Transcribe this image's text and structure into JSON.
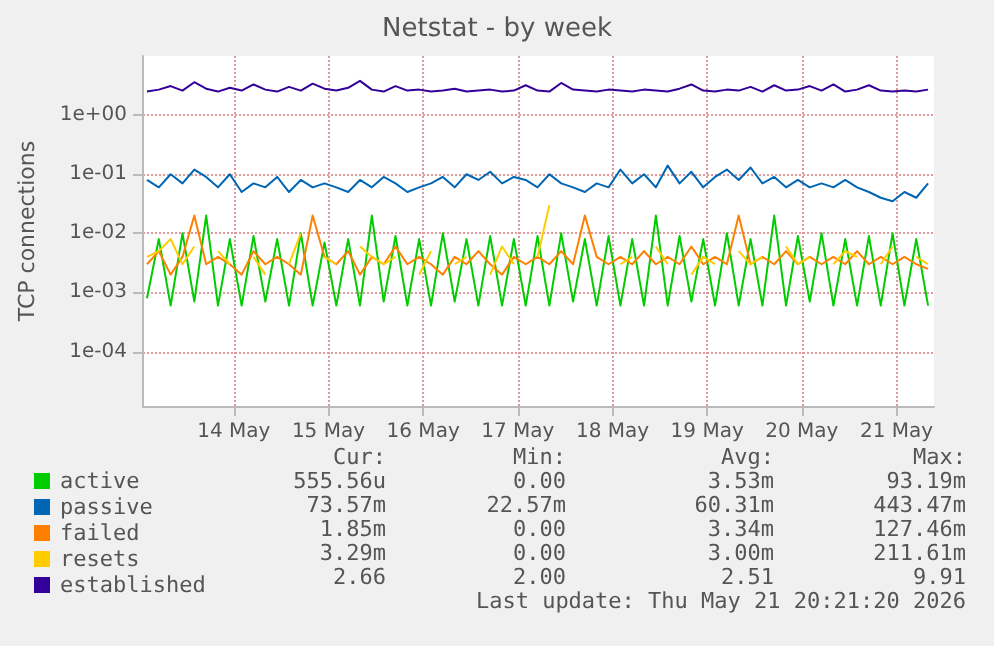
{
  "chart_data": {
    "type": "line",
    "title": "Netstat - by week",
    "ylabel": "TCP connections",
    "log": "y",
    "grid": true,
    "legend": "bottom left",
    "marker": "none",
    "line_style": "solid",
    "xlim": [
      "2026-05-13T01:00",
      "2026-05-21T09:30"
    ],
    "xticks": [
      {
        "value": "2026-05-14",
        "label": "14 May"
      },
      {
        "value": "2026-05-15",
        "label": "15 May"
      },
      {
        "value": "2026-05-16",
        "label": "16 May"
      },
      {
        "value": "2026-05-17",
        "label": "17 May"
      },
      {
        "value": "2026-05-18",
        "label": "18 May"
      },
      {
        "value": "2026-05-19",
        "label": "19 May"
      },
      {
        "value": "2026-05-20",
        "label": "20 May"
      },
      {
        "value": "2026-05-21",
        "label": "21 May"
      }
    ],
    "ylim": [
      1.2e-05,
      10
    ],
    "yticks": [
      {
        "value": 0.0001,
        "label": "1e-04"
      },
      {
        "value": 0.001,
        "label": "1e-03"
      },
      {
        "value": 0.01,
        "label": "1e-02"
      },
      {
        "value": 0.1,
        "label": "1e-01"
      },
      {
        "value": 1,
        "label": "1e+00"
      }
    ],
    "x": [
      "2026-05-13T02:00",
      "2026-05-13T05:00",
      "2026-05-13T08:00",
      "2026-05-13T11:00",
      "2026-05-13T14:00",
      "2026-05-13T17:00",
      "2026-05-13T20:00",
      "2026-05-13T23:00",
      "2026-05-14T02:00",
      "2026-05-14T05:00",
      "2026-05-14T08:00",
      "2026-05-14T11:00",
      "2026-05-14T14:00",
      "2026-05-14T17:00",
      "2026-05-14T20:00",
      "2026-05-14T23:00",
      "2026-05-15T02:00",
      "2026-05-15T05:00",
      "2026-05-15T08:00",
      "2026-05-15T11:00",
      "2026-05-15T14:00",
      "2026-05-15T17:00",
      "2026-05-15T20:00",
      "2026-05-15T23:00",
      "2026-05-16T02:00",
      "2026-05-16T05:00",
      "2026-05-16T08:00",
      "2026-05-16T11:00",
      "2026-05-16T14:00",
      "2026-05-16T17:00",
      "2026-05-16T20:00",
      "2026-05-16T23:00",
      "2026-05-17T02:00",
      "2026-05-17T05:00",
      "2026-05-17T08:00",
      "2026-05-17T11:00",
      "2026-05-17T14:00",
      "2026-05-17T17:00",
      "2026-05-17T20:00",
      "2026-05-17T23:00",
      "2026-05-18T02:00",
      "2026-05-18T05:00",
      "2026-05-18T08:00",
      "2026-05-18T11:00",
      "2026-05-18T14:00",
      "2026-05-18T17:00",
      "2026-05-18T20:00",
      "2026-05-18T23:00",
      "2026-05-19T02:00",
      "2026-05-19T05:00",
      "2026-05-19T08:00",
      "2026-05-19T11:00",
      "2026-05-19T14:00",
      "2026-05-19T17:00",
      "2026-05-19T20:00",
      "2026-05-19T23:00",
      "2026-05-20T02:00",
      "2026-05-20T05:00",
      "2026-05-20T08:00",
      "2026-05-20T11:00",
      "2026-05-20T14:00",
      "2026-05-20T17:00",
      "2026-05-20T20:00",
      "2026-05-20T23:00",
      "2026-05-21T02:00",
      "2026-05-21T05:00",
      "2026-05-21T08:00"
    ],
    "series": [
      {
        "name": "active",
        "color": "#00cc00",
        "values": [
          0.0008,
          0.008,
          0.0006,
          0.01,
          0.0007,
          0.02,
          0.0006,
          0.008,
          0.0006,
          0.009,
          0.0007,
          0.008,
          0.0006,
          0.01,
          0.0006,
          0.007,
          0.0006,
          0.008,
          0.0006,
          0.02,
          0.0007,
          0.009,
          0.0006,
          0.008,
          0.0006,
          0.01,
          0.0007,
          0.008,
          0.0006,
          0.009,
          0.0006,
          0.008,
          0.0006,
          0.009,
          0.0006,
          0.01,
          0.0007,
          0.008,
          0.0006,
          0.009,
          0.0006,
          0.008,
          0.0006,
          0.02,
          0.0006,
          0.009,
          0.0007,
          0.008,
          0.0006,
          0.01,
          0.0006,
          0.008,
          0.0006,
          0.02,
          0.0006,
          0.009,
          0.0007,
          0.01,
          0.0006,
          0.008,
          0.0006,
          0.009,
          0.0006,
          0.01,
          0.0006,
          0.008,
          0.0006
        ]
      },
      {
        "name": "passive",
        "color": "#0066b3",
        "values": [
          0.08,
          0.06,
          0.1,
          0.07,
          0.12,
          0.09,
          0.06,
          0.1,
          0.05,
          0.07,
          0.06,
          0.09,
          0.05,
          0.08,
          0.06,
          0.07,
          0.06,
          0.05,
          0.08,
          0.06,
          0.09,
          0.07,
          0.05,
          0.06,
          0.07,
          0.09,
          0.06,
          0.1,
          0.08,
          0.11,
          0.07,
          0.09,
          0.08,
          0.06,
          0.1,
          0.07,
          0.06,
          0.05,
          0.07,
          0.06,
          0.12,
          0.07,
          0.1,
          0.06,
          0.14,
          0.07,
          0.11,
          0.06,
          0.09,
          0.12,
          0.08,
          0.13,
          0.07,
          0.09,
          0.06,
          0.08,
          0.06,
          0.07,
          0.06,
          0.08,
          0.06,
          0.05,
          0.04,
          0.035,
          0.05,
          0.04,
          0.07
        ]
      },
      {
        "name": "failed",
        "color": "#ff8000",
        "values": [
          0.003,
          0.005,
          0.002,
          0.004,
          0.02,
          0.003,
          0.004,
          0.003,
          0.002,
          0.005,
          0.003,
          0.004,
          0.003,
          0.002,
          0.02,
          0.004,
          0.003,
          0.005,
          0.002,
          0.004,
          0.003,
          0.006,
          0.003,
          0.004,
          0.003,
          0.002,
          0.004,
          0.003,
          0.005,
          0.003,
          0.002,
          0.004,
          0.003,
          0.004,
          0.003,
          0.005,
          0.003,
          0.02,
          0.004,
          0.003,
          0.004,
          0.003,
          0.005,
          0.003,
          0.004,
          0.003,
          0.006,
          0.003,
          0.004,
          0.003,
          0.02,
          0.003,
          0.004,
          0.003,
          0.005,
          0.003,
          0.004,
          0.003,
          0.004,
          0.003,
          0.005,
          0.003,
          0.004,
          0.003,
          0.004,
          0.003,
          0.0025
        ]
      },
      {
        "name": "resets",
        "color": "#ffcc00",
        "values": [
          0.004,
          0.005,
          0.008,
          0.003,
          0.006,
          null,
          0.005,
          0.003,
          null,
          0.004,
          0.002,
          null,
          0.003,
          0.01,
          null,
          0.004,
          0.003,
          null,
          0.006,
          0.004,
          0.003,
          0.004,
          null,
          0.002,
          0.005,
          null,
          0.003,
          0.004,
          null,
          0.002,
          0.006,
          0.003,
          null,
          0.004,
          0.03,
          null,
          null,
          null,
          null,
          null,
          0.003,
          0.004,
          null,
          0.006,
          0.003,
          null,
          0.002,
          0.004,
          0.003,
          null,
          0.005,
          0.003,
          0.004,
          null,
          0.006,
          0.003,
          0.004,
          null,
          0.003,
          0.005,
          0.004,
          null,
          0.003,
          0.006,
          null,
          0.004,
          0.003
        ]
      },
      {
        "name": "established",
        "color": "#330099",
        "values": [
          2.5,
          2.7,
          3.1,
          2.6,
          3.6,
          2.8,
          2.5,
          2.9,
          2.6,
          3.3,
          2.7,
          2.5,
          3.0,
          2.6,
          3.4,
          2.8,
          2.6,
          2.9,
          3.8,
          2.7,
          2.5,
          3.1,
          2.6,
          2.7,
          2.5,
          2.6,
          2.8,
          2.5,
          2.6,
          2.7,
          2.5,
          2.6,
          3.2,
          2.6,
          2.5,
          3.5,
          2.7,
          2.6,
          2.5,
          2.7,
          2.6,
          2.5,
          2.7,
          2.6,
          2.5,
          2.8,
          3.3,
          2.6,
          2.5,
          2.7,
          2.6,
          3.0,
          2.5,
          3.2,
          2.6,
          2.7,
          3.1,
          2.6,
          3.3,
          2.5,
          2.7,
          3.2,
          2.6,
          2.5,
          2.6,
          2.5,
          2.7
        ]
      }
    ],
    "annotations": [
      "Cur:",
      "Min:",
      "Avg:",
      "Max:",
      "555.56u",
      "0.00",
      "3.53m",
      "93.19m",
      "73.57m",
      "22.57m",
      "60.31m",
      "443.47m",
      "1.85m",
      "0.00",
      "3.34m",
      "127.46m",
      "3.29m",
      "0.00",
      "3.00m",
      "211.61m",
      "2.66",
      "2.00",
      "2.51",
      "9.91",
      "Last update: Thu May 21 20:21:20 2026"
    ]
  }
}
